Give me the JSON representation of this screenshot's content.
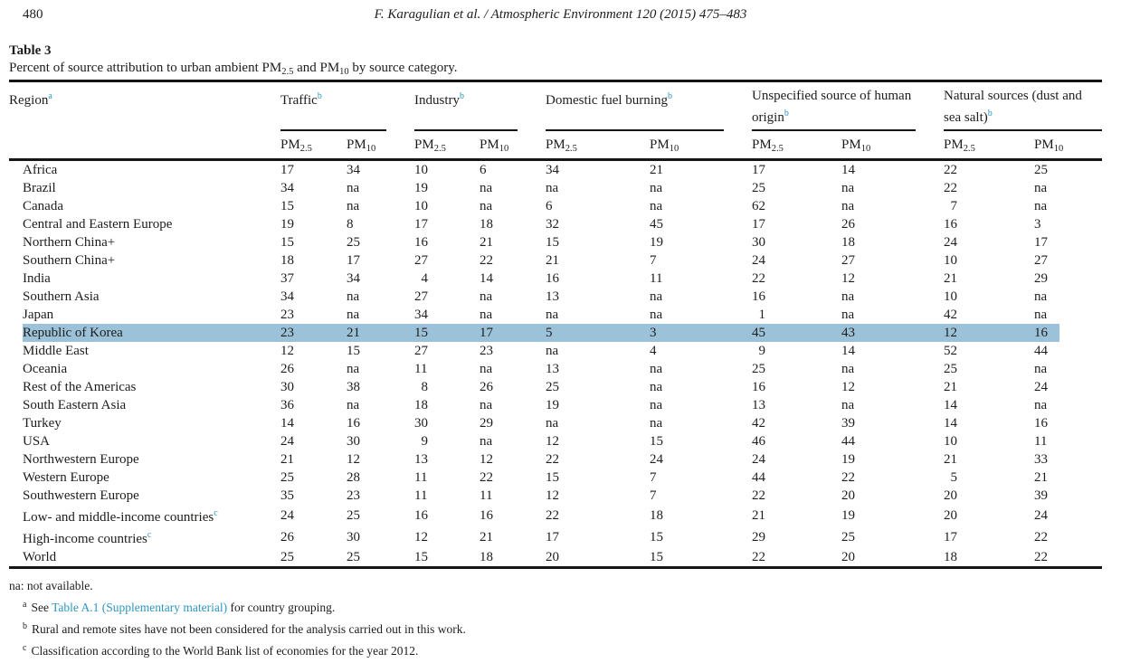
{
  "page": {
    "number": "480",
    "running_head": "F. Karagulian et al. / Atmospheric Environment 120 (2015) 475–483"
  },
  "colors": {
    "accent_blue": "#2e96be",
    "row_highlight": "#9cc2da"
  },
  "table": {
    "label": "Table 3",
    "caption": {
      "pre": "Percent of source attribution to urban ambient PM",
      "sub1": "2.5",
      "mid": " and PM",
      "sub2": "10",
      "post": " by source category."
    },
    "region_header": {
      "label": "Region",
      "sup": "a"
    },
    "groups": [
      {
        "title": "Traffic",
        "sup": "b"
      },
      {
        "title": "Industry",
        "sup": "b"
      },
      {
        "title": "Domestic fuel burning",
        "sup": "b"
      },
      {
        "title": "Unspecified source of human origin",
        "sup": "b"
      },
      {
        "title": "Natural sources (dust and sea salt)",
        "sup": "b"
      }
    ],
    "pm_labels": [
      {
        "base": "PM",
        "sub": "2.5"
      },
      {
        "base": "PM",
        "sub": "10"
      }
    ],
    "column_order": [
      "Traffic PM2.5",
      "Traffic PM10",
      "Industry PM2.5",
      "Industry PM10",
      "Domestic fuel burning PM2.5",
      "Domestic fuel burning PM10",
      "Unspecified source of human origin PM2.5",
      "Unspecified source of human origin PM10",
      "Natural sources PM2.5",
      "Natural sources PM10"
    ],
    "rows": [
      {
        "region": "Africa",
        "sup": "",
        "highlight": false,
        "values": [
          "17",
          "34",
          "10",
          "6",
          "34",
          "21",
          "17",
          "14",
          "22",
          "25"
        ]
      },
      {
        "region": "Brazil",
        "sup": "",
        "highlight": false,
        "values": [
          "34",
          "na",
          "19",
          "na",
          "na",
          "na",
          "25",
          "na",
          "22",
          "na"
        ]
      },
      {
        "region": "Canada",
        "sup": "",
        "highlight": false,
        "values": [
          "15",
          "na",
          "10",
          "na",
          "6",
          "na",
          "62",
          "na",
          " 7",
          "na"
        ]
      },
      {
        "region": "Central and Eastern Europe",
        "sup": "",
        "highlight": false,
        "values": [
          "19",
          "8",
          "17",
          "18",
          "32",
          "45",
          "17",
          "26",
          "16",
          "3"
        ]
      },
      {
        "region": "Northern China+",
        "sup": "",
        "highlight": false,
        "values": [
          "15",
          "25",
          "16",
          "21",
          "15",
          "19",
          "30",
          "18",
          "24",
          "17"
        ]
      },
      {
        "region": "Southern China+",
        "sup": "",
        "highlight": false,
        "values": [
          "18",
          "17",
          "27",
          "22",
          "21",
          "7",
          "24",
          "27",
          "10",
          "27"
        ]
      },
      {
        "region": "India",
        "sup": "",
        "highlight": false,
        "values": [
          "37",
          "34",
          " 4",
          "14",
          "16",
          "11",
          "22",
          "12",
          "21",
          "29"
        ]
      },
      {
        "region": "Southern Asia",
        "sup": "",
        "highlight": false,
        "values": [
          "34",
          "na",
          "27",
          "na",
          "13",
          "na",
          "16",
          "na",
          "10",
          "na"
        ]
      },
      {
        "region": "Japan",
        "sup": "",
        "highlight": false,
        "values": [
          "23",
          "na",
          "34",
          "na",
          "na",
          "na",
          " 1",
          "na",
          "42",
          "na"
        ]
      },
      {
        "region": "Republic of Korea",
        "sup": "",
        "highlight": true,
        "values": [
          "23",
          "21",
          "15",
          "17",
          "5",
          "3",
          "45",
          "43",
          "12",
          "16"
        ]
      },
      {
        "region": "Middle East",
        "sup": "",
        "highlight": false,
        "values": [
          "12",
          "15",
          "27",
          "23",
          "na",
          "4",
          " 9",
          "14",
          "52",
          "44"
        ]
      },
      {
        "region": "Oceania",
        "sup": "",
        "highlight": false,
        "values": [
          "26",
          "na",
          "11",
          "na",
          "13",
          "na",
          "25",
          "na",
          "25",
          "na"
        ]
      },
      {
        "region": "Rest of the Americas",
        "sup": "",
        "highlight": false,
        "values": [
          "30",
          "38",
          " 8",
          "26",
          "25",
          "na",
          "16",
          "12",
          "21",
          "24"
        ]
      },
      {
        "region": "South Eastern Asia",
        "sup": "",
        "highlight": false,
        "values": [
          "36",
          "na",
          "18",
          "na",
          "19",
          "na",
          "13",
          "na",
          "14",
          "na"
        ]
      },
      {
        "region": "Turkey",
        "sup": "",
        "highlight": false,
        "values": [
          "14",
          "16",
          "30",
          "29",
          "na",
          "na",
          "42",
          "39",
          "14",
          "16"
        ]
      },
      {
        "region": "USA",
        "sup": "",
        "highlight": false,
        "values": [
          "24",
          "30",
          " 9",
          "na",
          "12",
          "15",
          "46",
          "44",
          "10",
          "11"
        ]
      },
      {
        "region": "Northwestern Europe",
        "sup": "",
        "highlight": false,
        "values": [
          "21",
          "12",
          "13",
          "12",
          "22",
          "24",
          "24",
          "19",
          "21",
          "33"
        ]
      },
      {
        "region": "Western Europe",
        "sup": "",
        "highlight": false,
        "values": [
          "25",
          "28",
          "11",
          "22",
          "15",
          "7",
          "44",
          "22",
          " 5",
          "21"
        ]
      },
      {
        "region": "Southwestern Europe",
        "sup": "",
        "highlight": false,
        "values": [
          "35",
          "23",
          "11",
          "11",
          "12",
          "7",
          "22",
          "20",
          "20",
          "39"
        ]
      },
      {
        "region": "Low- and middle-income countries",
        "sup": "c",
        "highlight": false,
        "values": [
          "24",
          "25",
          "16",
          "16",
          "22",
          "18",
          "21",
          "19",
          "20",
          "24"
        ]
      },
      {
        "region": "High-income countries",
        "sup": "c",
        "highlight": false,
        "values": [
          "26",
          "30",
          "12",
          "21",
          "17",
          "15",
          "29",
          "25",
          "17",
          "22"
        ]
      },
      {
        "region": "World",
        "sup": "",
        "highlight": false,
        "values": [
          "25",
          "25",
          "15",
          "18",
          "20",
          "15",
          "22",
          "20",
          "18",
          "22"
        ]
      }
    ]
  },
  "footnotes": {
    "na_note": "na: not available.",
    "items": [
      {
        "marker": "a",
        "pre": "See ",
        "link": "Table A.1 (Supplementary material)",
        "post": " for country grouping."
      },
      {
        "marker": "b",
        "pre": "Rural and remote sites have not been considered for the analysis carried out in this work.",
        "link": "",
        "post": ""
      },
      {
        "marker": "c",
        "pre": "Classification according to the World Bank list of economies for the year 2012.",
        "link": "",
        "post": ""
      }
    ]
  }
}
